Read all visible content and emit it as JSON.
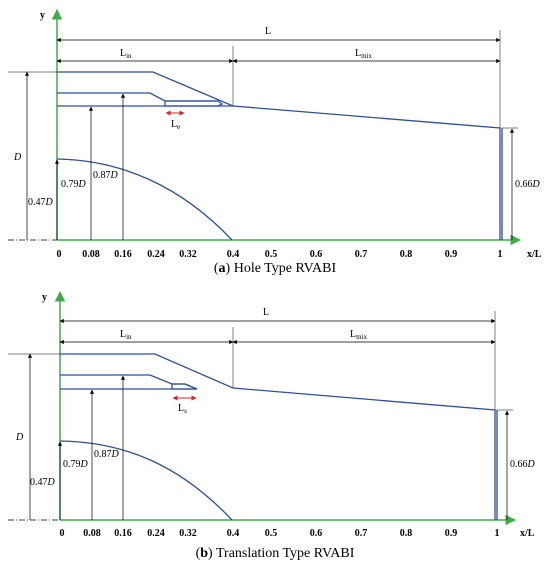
{
  "colors": {
    "outline": "#2c4f9e",
    "axis": "#3fae4a",
    "dimension": "#000000",
    "insert_marker": "#e02020"
  },
  "x_ticks": [
    "0",
    "0.08",
    "0.16",
    "0.24",
    "0.32",
    "0.4",
    "0.5",
    "0.6",
    "0.7",
    "0.8",
    "0.9",
    "1"
  ],
  "panels": [
    {
      "id": "a",
      "caption_letter": "a",
      "caption_open": "(",
      "caption_close": ")",
      "caption_text": " Hole Type RVABI",
      "axis_y": "y",
      "axis_x": "x/L",
      "len_total": "L",
      "len_inlet_main": "L",
      "len_inlet_sub": "in",
      "len_mix_main": "L",
      "len_mix_sub": "mix",
      "len_insert_main": "L",
      "len_insert_sub": "e",
      "dia_label": "D",
      "dia_047_num": "0.47",
      "dia_079_num": "0.79",
      "dia_087_num": "0.87",
      "dia_066_num": "0.66",
      "dia_unit": "D"
    },
    {
      "id": "b",
      "caption_letter": "b",
      "caption_open": "(",
      "caption_close": ")",
      "caption_text": " Translation Type RVABI",
      "axis_y": "y",
      "axis_x": "x/L",
      "len_total": "L",
      "len_inlet_main": "L",
      "len_inlet_sub": "in",
      "len_mix_main": "L",
      "len_mix_sub": "mix",
      "len_insert_main": "L",
      "len_insert_sub": "s",
      "dia_label": "D",
      "dia_047_num": "0.47",
      "dia_079_num": "0.79",
      "dia_087_num": "0.87",
      "dia_066_num": "0.66",
      "dia_unit": "D"
    }
  ]
}
